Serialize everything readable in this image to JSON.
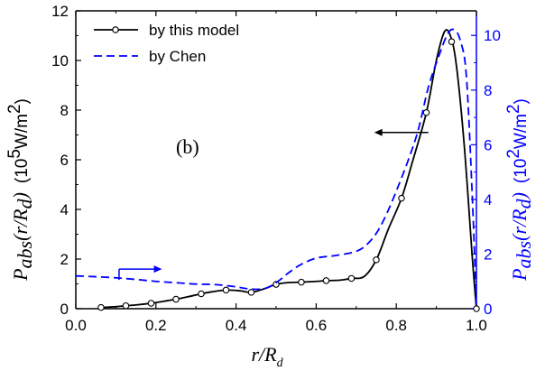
{
  "chart_data": {
    "type": "line",
    "annotation": "(b)",
    "xlabel": {
      "base": "r/R",
      "sub": "d"
    },
    "ylabel_left": {
      "base": "P",
      "sub1": "abs",
      "mid": "(r/R",
      "sub2": "d",
      "end": ")",
      "unit": "(10",
      "unit_sup": "5",
      "unit_end": "W/m",
      "unit_sup2": "2",
      "unit_close": ")"
    },
    "ylabel_right": {
      "base": "P",
      "sub1": "abs",
      "mid": "(r/R",
      "sub2": "d",
      "end": ")",
      "unit": "(10",
      "unit_sup": "2",
      "unit_end": "W/m",
      "unit_sup2": "2",
      "unit_close": ")"
    },
    "xlim": [
      0.0,
      1.0
    ],
    "ylim_left": [
      0,
      12
    ],
    "ylim_right": [
      0,
      10.9
    ],
    "x_ticks": [
      "0.0",
      "0.2",
      "0.4",
      "0.6",
      "0.8",
      "1.0"
    ],
    "y_left_ticks": [
      "0",
      "2",
      "4",
      "6",
      "8",
      "10",
      "12"
    ],
    "y_right_ticks": [
      "0",
      "2",
      "4",
      "6",
      "8",
      "10"
    ],
    "grid": false,
    "legend_position": "top-left",
    "series": [
      {
        "name": "by this model",
        "axis": "left",
        "color": "#000000",
        "style": "solid",
        "marker": "open-circle",
        "x": [
          0.063,
          0.1,
          0.125,
          0.15,
          0.188,
          0.22,
          0.25,
          0.28,
          0.313,
          0.34,
          0.375,
          0.41,
          0.438,
          0.47,
          0.5,
          0.53,
          0.563,
          0.6,
          0.625,
          0.66,
          0.688,
          0.72,
          0.75,
          0.78,
          0.813,
          0.84,
          0.875,
          0.9,
          0.92,
          0.935,
          0.95,
          0.97,
          0.99,
          1.0
        ],
        "y": [
          0.05,
          0.08,
          0.12,
          0.15,
          0.22,
          0.3,
          0.38,
          0.48,
          0.6,
          0.68,
          0.75,
          0.72,
          0.66,
          0.8,
          0.98,
          1.05,
          1.07,
          1.1,
          1.13,
          1.15,
          1.22,
          1.3,
          1.97,
          3.2,
          4.45,
          5.9,
          7.9,
          10.0,
          11.15,
          11.0,
          9.8,
          6.5,
          2.0,
          0.0
        ],
        "marker_x": [
          0.063,
          0.125,
          0.188,
          0.25,
          0.313,
          0.375,
          0.438,
          0.5,
          0.563,
          0.625,
          0.688,
          0.75,
          0.813,
          0.875,
          0.938,
          1.0
        ]
      },
      {
        "name": "by Chen",
        "axis": "right",
        "color": "#0000ff",
        "style": "dashed",
        "x": [
          0.0,
          0.05,
          0.1,
          0.15,
          0.2,
          0.25,
          0.3,
          0.35,
          0.4,
          0.43,
          0.47,
          0.5,
          0.53,
          0.56,
          0.6,
          0.65,
          0.7,
          0.73,
          0.76,
          0.8,
          0.85,
          0.88,
          0.91,
          0.93,
          0.945,
          0.96,
          0.975,
          0.99,
          1.0
        ],
        "y": [
          1.2,
          1.17,
          1.13,
          1.07,
          1.0,
          0.95,
          0.9,
          0.88,
          0.8,
          0.73,
          0.73,
          0.95,
          1.3,
          1.6,
          1.85,
          1.95,
          2.1,
          2.4,
          3.0,
          4.3,
          6.3,
          8.1,
          9.4,
          10.1,
          10.2,
          9.8,
          8.5,
          4.0,
          0.0
        ]
      }
    ],
    "arrows": [
      {
        "direction": "left",
        "target_axis": "left"
      },
      {
        "direction": "right",
        "target_axis": "right"
      }
    ]
  }
}
